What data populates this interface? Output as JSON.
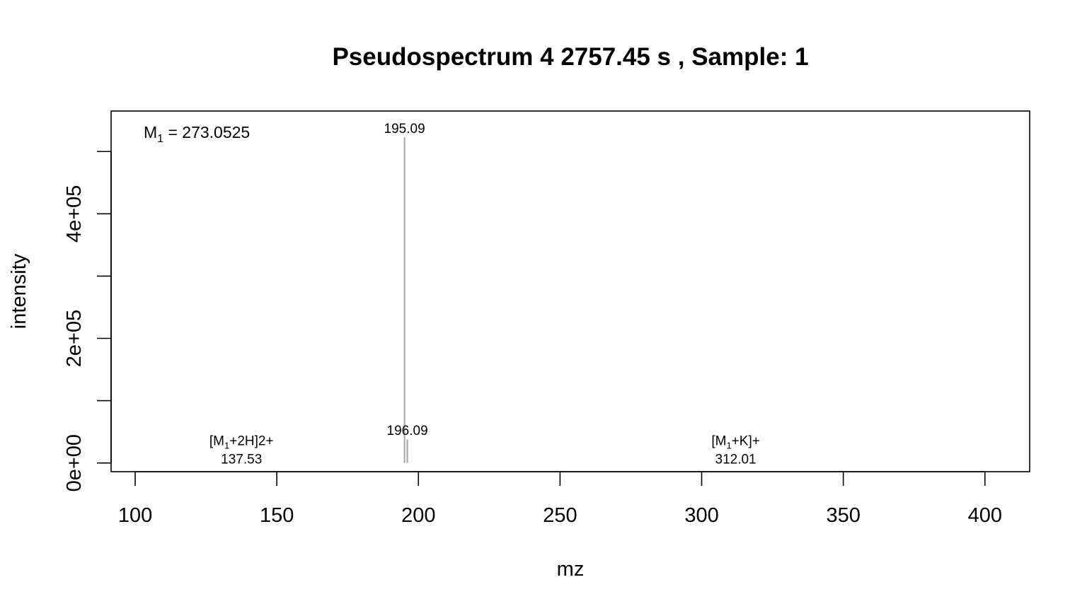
{
  "chart_data": {
    "type": "bar",
    "title": "Pseudospectrum 4 2757.45 s , Sample: 1",
    "xlabel": "mz",
    "ylabel": "intensity",
    "xlim": [
      91.5,
      415.8
    ],
    "ylim": [
      -14000,
      565000
    ],
    "x_ticks": [
      100,
      150,
      200,
      250,
      300,
      350,
      400
    ],
    "x_tick_labels": [
      "100",
      "150",
      "200",
      "250",
      "300",
      "350",
      "400"
    ],
    "y_ticks": [
      0,
      100000,
      200000,
      300000,
      400000,
      500000
    ],
    "y_tick_labels": [
      "0e+00",
      "",
      "2e+05",
      "",
      "4e+05",
      ""
    ],
    "grid": false,
    "series": [
      {
        "peaks": [
          {
            "mz": 137.53,
            "intensity": 600,
            "label": "137.53",
            "annotation": {
              "base": "[M",
              "sub": "1",
              "rest": "+2H]2+"
            }
          },
          {
            "mz": 195.09,
            "intensity": 523000,
            "label": "195.09"
          },
          {
            "mz": 196.09,
            "intensity": 38000,
            "label": "196.09"
          },
          {
            "mz": 312.01,
            "intensity": 400,
            "label": "312.01",
            "annotation": {
              "base": "[M",
              "sub": "1",
              "rest": "+K]+"
            }
          }
        ]
      }
    ],
    "mass_annotation": {
      "base": "M",
      "sub": "1",
      "rest": " = 273.0525"
    },
    "colors": {
      "peak": "#a6a6a6",
      "axis": "#000000",
      "background": "#ffffff"
    }
  }
}
